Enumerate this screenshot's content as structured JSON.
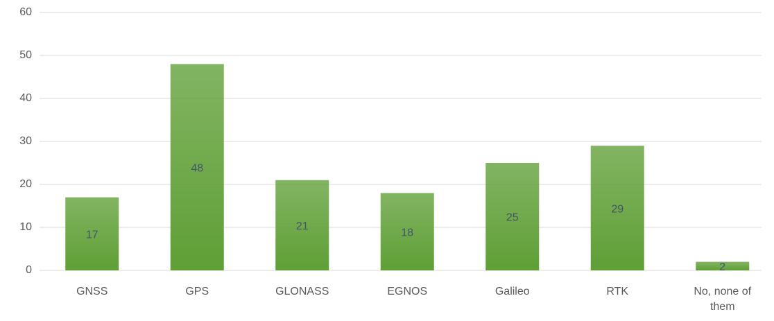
{
  "chart_data": {
    "type": "bar",
    "categories": [
      "GNSS",
      "GPS",
      "GLONASS",
      "EGNOS",
      "Galileo",
      "RTK",
      "No, none of them"
    ],
    "values": [
      17,
      48,
      21,
      18,
      25,
      29,
      2
    ],
    "color": "#5f9f36",
    "ylim": [
      0,
      60
    ],
    "yticks": [
      0,
      10,
      20,
      30,
      40,
      50,
      60
    ],
    "grid": true
  }
}
